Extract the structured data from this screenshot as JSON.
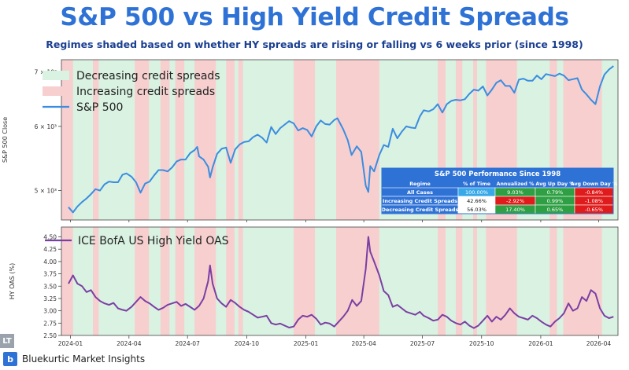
{
  "header": {
    "title": "S&P 500 vs High Yield Credit Spreads",
    "subtitle": "Regimes shaded based on whether HY spreads are rising or falling vs 6 weeks prior (since 1998)"
  },
  "brand": {
    "name": "Bluekurtic Market Insights",
    "logo_text": "b",
    "corner_mark": "LT"
  },
  "colors": {
    "decreasing_fill": "#d9f2e1",
    "increasing_fill": "#f7cfcf",
    "sp_line": "#3b8de0",
    "hy_line": "#7b3fa3",
    "title": "#2f72d6",
    "subtitle": "#1b3f91",
    "table_header": "#2f72d6",
    "cell_green": "#2ea043",
    "cell_red": "#e01b1b",
    "cell_blue": "#1f63c9"
  },
  "chart_data": [
    {
      "type": "line",
      "ylabel": "S&P 500 Close",
      "yscale": "log",
      "ylim": [
        4600,
        7250
      ],
      "yticks": [
        5000,
        6000,
        7000
      ],
      "ytick_labels": [
        "5 × 10³",
        "6 × 10³",
        "7 × 10³"
      ],
      "xlim": [
        "2023-12-18",
        "2026-05-01"
      ],
      "xticks": [
        "2024-01",
        "2024-04",
        "2024-07",
        "2024-10",
        "2025-01",
        "2025-04",
        "2025-07",
        "2025-10",
        "2026-01",
        "2026-04"
      ],
      "xtick_dates": [
        "2024-01-01",
        "2024-04-01",
        "2024-07-01",
        "2024-10-01",
        "2025-01-01",
        "2025-04-01",
        "2025-07-01",
        "2025-10-01",
        "2026-01-01",
        "2026-04-01"
      ],
      "legend_position": "upper-left",
      "legend": [
        "Decreasing credit spreads",
        "Increasing credit spreads",
        "S&P 500"
      ],
      "series": [
        {
          "name": "S&P 500",
          "x": [
            "2023-12-29",
            "2024-01-05",
            "2024-01-12",
            "2024-01-19",
            "2024-01-26",
            "2024-02-02",
            "2024-02-09",
            "2024-02-16",
            "2024-02-23",
            "2024-03-01",
            "2024-03-08",
            "2024-03-15",
            "2024-03-22",
            "2024-03-28",
            "2024-04-05",
            "2024-04-12",
            "2024-04-19",
            "2024-04-26",
            "2024-05-03",
            "2024-05-10",
            "2024-05-17",
            "2024-05-24",
            "2024-05-31",
            "2024-06-07",
            "2024-06-14",
            "2024-06-21",
            "2024-06-28",
            "2024-07-05",
            "2024-07-12",
            "2024-07-16",
            "2024-07-19",
            "2024-07-26",
            "2024-08-02",
            "2024-08-05",
            "2024-08-09",
            "2024-08-16",
            "2024-08-23",
            "2024-08-30",
            "2024-09-06",
            "2024-09-13",
            "2024-09-20",
            "2024-09-27",
            "2024-10-04",
            "2024-10-11",
            "2024-10-18",
            "2024-10-25",
            "2024-11-01",
            "2024-11-08",
            "2024-11-15",
            "2024-11-22",
            "2024-11-29",
            "2024-12-06",
            "2024-12-13",
            "2024-12-20",
            "2024-12-27",
            "2025-01-03",
            "2025-01-10",
            "2025-01-17",
            "2025-01-24",
            "2025-01-31",
            "2025-02-07",
            "2025-02-14",
            "2025-02-19",
            "2025-02-28",
            "2025-03-07",
            "2025-03-13",
            "2025-03-21",
            "2025-03-28",
            "2025-04-04",
            "2025-04-08",
            "2025-04-11",
            "2025-04-17",
            "2025-04-25",
            "2025-05-02",
            "2025-05-09",
            "2025-05-16",
            "2025-05-23",
            "2025-05-30",
            "2025-06-06",
            "2025-06-13",
            "2025-06-20",
            "2025-06-27",
            "2025-07-03",
            "2025-07-11",
            "2025-07-18",
            "2025-07-25",
            "2025-08-01",
            "2025-08-08",
            "2025-08-15",
            "2025-08-22",
            "2025-08-29",
            "2025-09-05",
            "2025-09-12",
            "2025-09-19",
            "2025-09-26",
            "2025-10-03",
            "2025-10-10",
            "2025-10-17",
            "2025-10-24",
            "2025-10-31",
            "2025-11-07",
            "2025-11-14",
            "2025-11-21",
            "2025-11-28",
            "2025-12-05",
            "2025-12-12",
            "2025-12-19",
            "2025-12-26",
            "2026-01-02",
            "2026-01-09",
            "2026-01-16",
            "2026-01-23",
            "2026-01-30",
            "2026-02-06",
            "2026-02-13",
            "2026-02-20",
            "2026-02-27",
            "2026-03-06",
            "2026-03-13",
            "2026-03-20",
            "2026-03-27",
            "2026-04-03",
            "2026-04-10",
            "2026-04-17",
            "2026-04-24"
          ],
          "values": [
            4770,
            4700,
            4780,
            4840,
            4890,
            4950,
            5020,
            5000,
            5090,
            5130,
            5120,
            5120,
            5230,
            5250,
            5200,
            5120,
            4970,
            5100,
            5130,
            5220,
            5300,
            5300,
            5280,
            5340,
            5430,
            5460,
            5460,
            5560,
            5610,
            5660,
            5510,
            5460,
            5350,
            5190,
            5340,
            5550,
            5630,
            5650,
            5410,
            5620,
            5700,
            5740,
            5750,
            5820,
            5860,
            5810,
            5730,
            5990,
            5870,
            5970,
            6030,
            6090,
            6050,
            5930,
            5970,
            5940,
            5830,
            6000,
            6100,
            6040,
            6030,
            6110,
            6140,
            5950,
            5770,
            5530,
            5670,
            5580,
            5070,
            4980,
            5360,
            5280,
            5530,
            5690,
            5660,
            5960,
            5800,
            5910,
            6000,
            5980,
            5970,
            6170,
            6280,
            6260,
            6300,
            6390,
            6240,
            6390,
            6450,
            6470,
            6460,
            6480,
            6580,
            6660,
            6640,
            6720,
            6550,
            6660,
            6790,
            6840,
            6730,
            6730,
            6600,
            6850,
            6870,
            6830,
            6830,
            6930,
            6860,
            6960,
            6940,
            6920,
            6970,
            6930,
            6840,
            6860,
            6880,
            6660,
            6570,
            6470,
            6390,
            6720,
            6950,
            7050,
            7120
          ]
        }
      ]
    },
    {
      "type": "line",
      "ylabel": "HY OAS (%)",
      "ylim": [
        2.5,
        4.7
      ],
      "yticks": [
        2.5,
        2.75,
        3.0,
        3.25,
        3.5,
        3.75,
        4.0,
        4.25,
        4.5
      ],
      "ytick_labels": [
        "2.50",
        "2.75",
        "3.00",
        "3.25",
        "3.50",
        "3.75",
        "4.00",
        "4.25",
        "4.50"
      ],
      "legend_position": "upper-left",
      "legend": [
        "ICE BofA US High Yield OAS"
      ],
      "series": [
        {
          "name": "ICE BofA US High Yield OAS",
          "x": [
            "2023-12-29",
            "2024-01-05",
            "2024-01-12",
            "2024-01-19",
            "2024-01-26",
            "2024-02-02",
            "2024-02-09",
            "2024-02-16",
            "2024-02-23",
            "2024-03-01",
            "2024-03-08",
            "2024-03-15",
            "2024-03-22",
            "2024-03-28",
            "2024-04-05",
            "2024-04-12",
            "2024-04-19",
            "2024-04-26",
            "2024-05-03",
            "2024-05-10",
            "2024-05-17",
            "2024-05-24",
            "2024-05-31",
            "2024-06-07",
            "2024-06-14",
            "2024-06-21",
            "2024-06-28",
            "2024-07-05",
            "2024-07-12",
            "2024-07-19",
            "2024-07-26",
            "2024-08-02",
            "2024-08-05",
            "2024-08-09",
            "2024-08-16",
            "2024-08-23",
            "2024-08-30",
            "2024-09-06",
            "2024-09-13",
            "2024-09-20",
            "2024-09-27",
            "2024-10-04",
            "2024-10-11",
            "2024-10-18",
            "2024-10-25",
            "2024-11-01",
            "2024-11-08",
            "2024-11-15",
            "2024-11-22",
            "2024-11-29",
            "2024-12-06",
            "2024-12-13",
            "2024-12-20",
            "2024-12-27",
            "2025-01-03",
            "2025-01-10",
            "2025-01-17",
            "2025-01-24",
            "2025-01-31",
            "2025-02-07",
            "2025-02-14",
            "2025-02-21",
            "2025-02-28",
            "2025-03-07",
            "2025-03-14",
            "2025-03-21",
            "2025-03-28",
            "2025-04-04",
            "2025-04-08",
            "2025-04-11",
            "2025-04-17",
            "2025-04-25",
            "2025-05-02",
            "2025-05-09",
            "2025-05-16",
            "2025-05-23",
            "2025-05-30",
            "2025-06-06",
            "2025-06-13",
            "2025-06-20",
            "2025-06-27",
            "2025-07-03",
            "2025-07-11",
            "2025-07-18",
            "2025-07-25",
            "2025-08-01",
            "2025-08-08",
            "2025-08-15",
            "2025-08-22",
            "2025-08-29",
            "2025-09-05",
            "2025-09-12",
            "2025-09-19",
            "2025-09-26",
            "2025-10-03",
            "2025-10-10",
            "2025-10-17",
            "2025-10-24",
            "2025-10-31",
            "2025-11-07",
            "2025-11-14",
            "2025-11-21",
            "2025-11-28",
            "2025-12-05",
            "2025-12-12",
            "2025-12-19",
            "2025-12-26",
            "2026-01-02",
            "2026-01-09",
            "2026-01-16",
            "2026-01-23",
            "2026-01-30",
            "2026-02-06",
            "2026-02-13",
            "2026-02-20",
            "2026-02-27",
            "2026-03-06",
            "2026-03-13",
            "2026-03-20",
            "2026-03-27",
            "2026-04-03",
            "2026-04-10",
            "2026-04-17",
            "2026-04-24"
          ],
          "values": [
            3.55,
            3.72,
            3.55,
            3.5,
            3.38,
            3.42,
            3.28,
            3.2,
            3.15,
            3.12,
            3.16,
            3.05,
            3.02,
            3.0,
            3.08,
            3.18,
            3.28,
            3.2,
            3.15,
            3.08,
            3.02,
            3.06,
            3.12,
            3.15,
            3.18,
            3.1,
            3.14,
            3.08,
            3.02,
            3.1,
            3.25,
            3.6,
            3.92,
            3.55,
            3.25,
            3.15,
            3.08,
            3.22,
            3.16,
            3.08,
            3.02,
            2.98,
            2.92,
            2.86,
            2.88,
            2.9,
            2.75,
            2.72,
            2.74,
            2.7,
            2.66,
            2.68,
            2.82,
            2.9,
            2.88,
            2.92,
            2.84,
            2.72,
            2.76,
            2.74,
            2.68,
            2.78,
            2.88,
            3.0,
            3.22,
            3.1,
            3.2,
            3.85,
            4.5,
            4.2,
            4.0,
            3.72,
            3.4,
            3.32,
            3.08,
            3.12,
            3.05,
            2.98,
            2.95,
            2.92,
            2.98,
            2.9,
            2.85,
            2.8,
            2.82,
            2.92,
            2.88,
            2.8,
            2.75,
            2.72,
            2.78,
            2.7,
            2.65,
            2.7,
            2.8,
            2.9,
            2.78,
            2.88,
            2.82,
            2.92,
            3.05,
            2.95,
            2.88,
            2.85,
            2.82,
            2.9,
            2.85,
            2.78,
            2.72,
            2.68,
            2.78,
            2.85,
            2.95,
            3.15,
            3.0,
            3.05,
            3.28,
            3.2,
            3.42,
            3.35,
            3.05,
            2.9,
            2.85,
            2.88
          ]
        }
      ]
    },
    {
      "type": "table",
      "title": "S&P 500 Performance Since 1998",
      "columns": [
        "Regime",
        "% of Time",
        "Annualized %",
        "Avg Up Day %",
        "Avg Down Day %"
      ],
      "rows": [
        [
          "All Cases",
          "100.00%",
          "9.03%",
          "0.79%",
          "-0.84%"
        ],
        [
          "Increasing Credit Spreads",
          "42.66%",
          "-2.92%",
          "0.99%",
          "-1.08%"
        ],
        [
          "Decreasing Credit Spreads",
          "56.03%",
          "17.40%",
          "0.65%",
          "-0.65%"
        ]
      ],
      "cell_colors": [
        [
          "#2f72d6",
          "#39a8e8",
          "#2ea043",
          "#2ea043",
          "#e01b1b"
        ],
        [
          "#2f72d6",
          "#ffffff",
          "#e01b1b",
          "#2ea043",
          "#e01b1b"
        ],
        [
          "#2f72d6",
          "#ffffff",
          "#2ea043",
          "#2ea043",
          "#e01b1b"
        ]
      ]
    }
  ],
  "regimes": {
    "increasing": [
      [
        "2023-12-18",
        "2024-01-05"
      ],
      [
        "2024-02-05",
        "2024-02-14"
      ],
      [
        "2024-04-10",
        "2024-05-02"
      ],
      [
        "2024-05-20",
        "2024-06-03"
      ],
      [
        "2024-06-12",
        "2024-06-26"
      ],
      [
        "2024-07-12",
        "2024-08-14"
      ],
      [
        "2024-08-30",
        "2024-09-12"
      ],
      [
        "2024-09-18",
        "2024-09-25"
      ],
      [
        "2024-12-13",
        "2025-01-15"
      ],
      [
        "2025-02-17",
        "2025-04-25"
      ],
      [
        "2025-07-25",
        "2025-08-06"
      ],
      [
        "2025-08-22",
        "2025-09-01"
      ],
      [
        "2025-09-18",
        "2025-09-24"
      ],
      [
        "2025-10-08",
        "2025-11-25"
      ],
      [
        "2026-01-15",
        "2026-01-26"
      ],
      [
        "2026-02-05",
        "2026-04-06"
      ]
    ]
  }
}
